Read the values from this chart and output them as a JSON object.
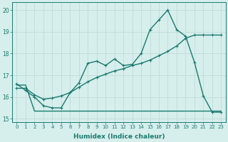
{
  "xlabel": "Humidex (Indice chaleur)",
  "bg_color": "#d6eeec",
  "line_color": "#1a7a6e",
  "grid_color": "#bcd8d5",
  "xlim": [
    -0.5,
    23.5
  ],
  "ylim": [
    14.85,
    20.35
  ],
  "yticks": [
    15,
    16,
    17,
    18,
    19,
    20
  ],
  "xticks": [
    0,
    1,
    2,
    3,
    4,
    5,
    6,
    7,
    8,
    9,
    10,
    11,
    12,
    13,
    14,
    15,
    16,
    17,
    18,
    19,
    20,
    21,
    22,
    23
  ],
  "line1_x": [
    0,
    1,
    2,
    3,
    4,
    5,
    6,
    7,
    8,
    9,
    10,
    11,
    12,
    13,
    14,
    15,
    16,
    17,
    18,
    19,
    20,
    21,
    22,
    23
  ],
  "line1_y": [
    16.6,
    16.3,
    16.0,
    15.6,
    15.5,
    15.5,
    16.2,
    16.65,
    17.55,
    17.65,
    17.45,
    17.75,
    17.45,
    17.5,
    18.0,
    19.1,
    19.55,
    20.0,
    19.1,
    18.8,
    17.6,
    16.05,
    15.3,
    15.3
  ],
  "line2_x": [
    0,
    1,
    2,
    3,
    4,
    5,
    6,
    7,
    8,
    9,
    10,
    11,
    12,
    13,
    14,
    15,
    16,
    17,
    18,
    19,
    20,
    21,
    22,
    23
  ],
  "line2_y": [
    16.4,
    16.4,
    16.1,
    15.9,
    15.95,
    16.05,
    16.2,
    16.45,
    16.7,
    16.9,
    17.05,
    17.2,
    17.3,
    17.45,
    17.55,
    17.7,
    17.9,
    18.1,
    18.35,
    18.7,
    18.85,
    18.85,
    18.85,
    18.85
  ],
  "line3_x": [
    0,
    1,
    2,
    3,
    4,
    5,
    6,
    7,
    8,
    9,
    10,
    11,
    12,
    13,
    14,
    15,
    16,
    17,
    18,
    19,
    20,
    21,
    22,
    23
  ],
  "line3_y": [
    16.55,
    16.55,
    15.35,
    15.35,
    15.35,
    15.35,
    15.35,
    15.35,
    15.35,
    15.35,
    15.35,
    15.35,
    15.35,
    15.35,
    15.35,
    15.35,
    15.35,
    15.35,
    15.35,
    15.35,
    15.35,
    15.35,
    15.35,
    15.35
  ],
  "markersize": 2.5,
  "linewidth": 1.0
}
